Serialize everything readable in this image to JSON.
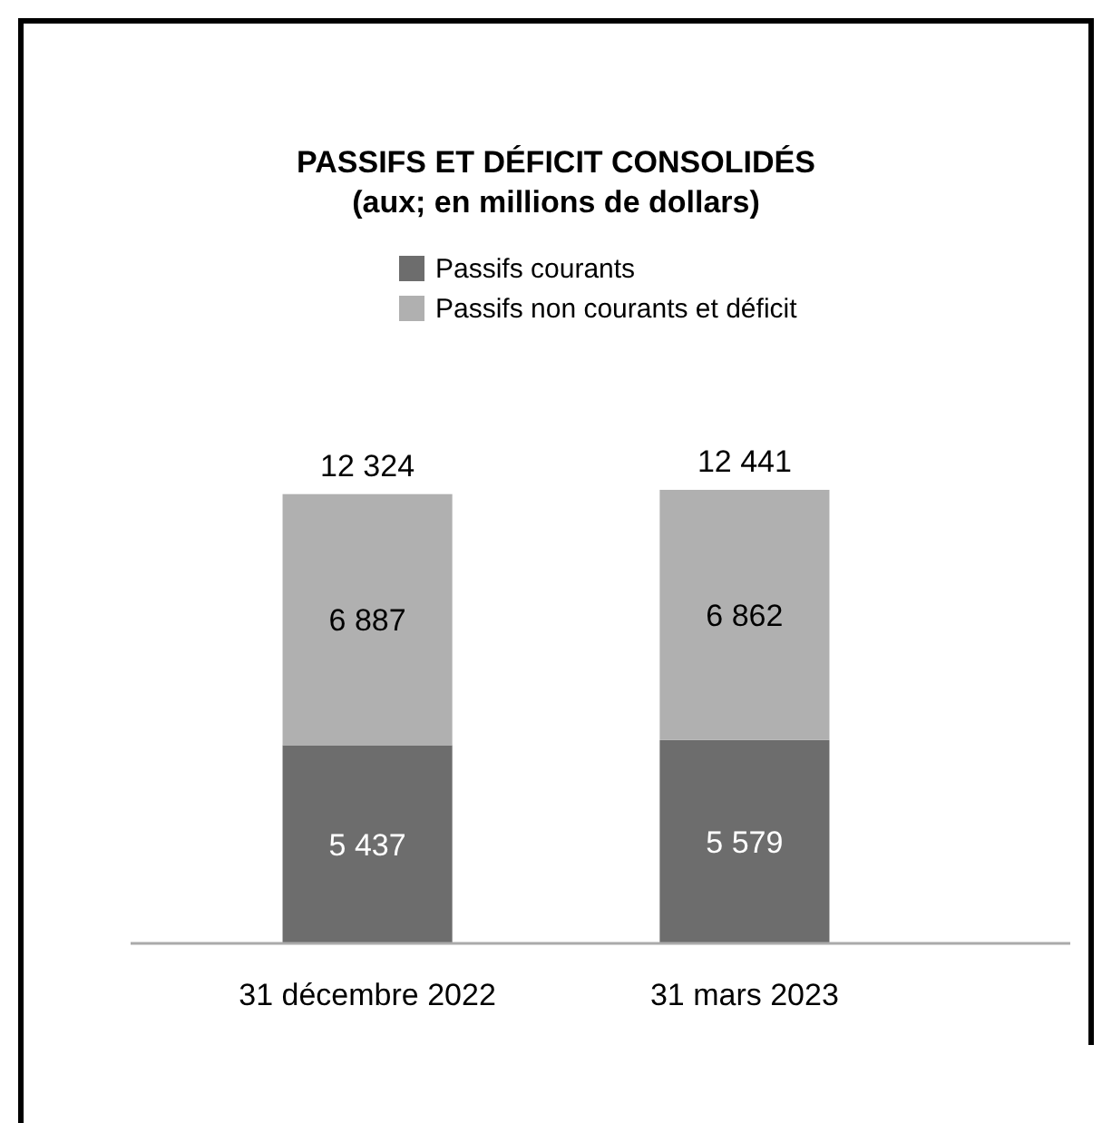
{
  "chart_data": {
    "type": "bar",
    "title": "PASSIFS ET DÉFICIT CONSOLIDÉS",
    "subtitle": "(aux; en millions de dollars)",
    "categories": [
      "31 décembre 2022",
      "31 mars 2023"
    ],
    "stacked": true,
    "legend": "top",
    "series": [
      {
        "name": "Passifs courants",
        "color": "#6d6d6d",
        "values": [
          5437,
          5579
        ],
        "value_labels": [
          "5 437",
          "5 579"
        ]
      },
      {
        "name": "Passifs non courants et déficit",
        "color": "#b0b0b0",
        "values": [
          6887,
          6862
        ],
        "value_labels": [
          "6 887",
          "6 862"
        ]
      }
    ],
    "totals": [
      "12 324",
      "12 441"
    ]
  }
}
